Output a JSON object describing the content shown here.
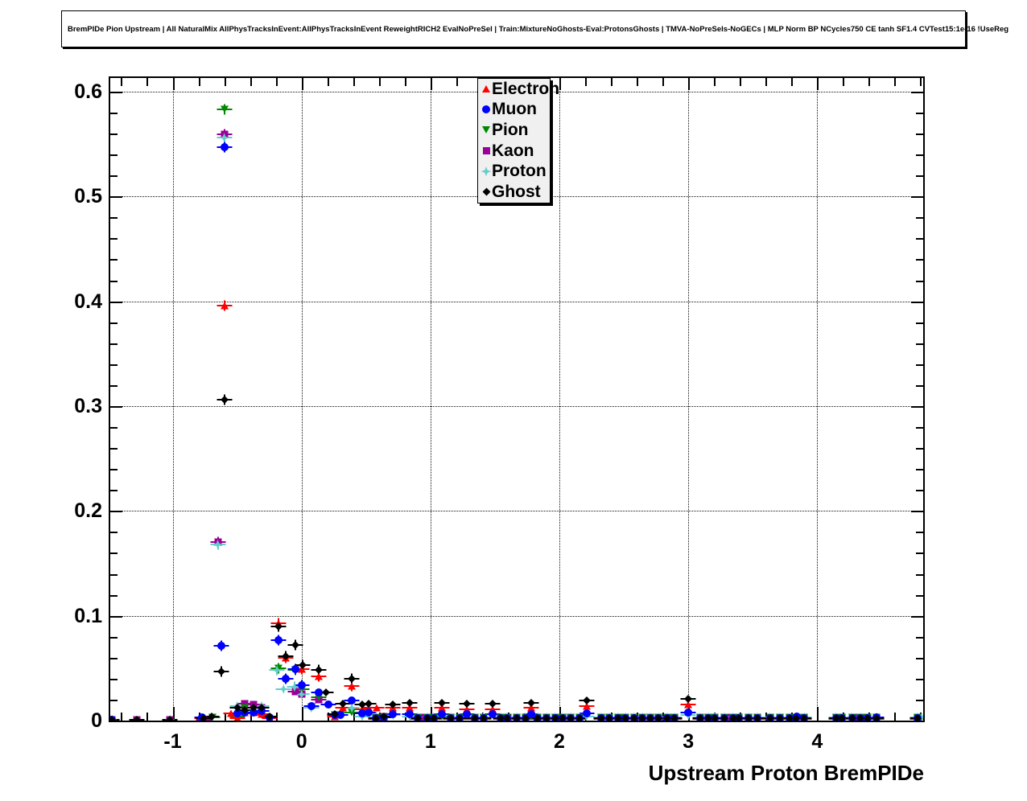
{
  "header": {
    "title": "BremPIDe Pion Upstream | All NaturalMix AllPhysTracksInEvent:AllPhysTracksInEvent ReweightRICH2 EvalNoPreSel | Train:MixtureNoGhosts-Eval:ProtonsGhosts | TMVA-NoPreSels-NoGECs | MLP Norm BP NCycles750 CE tanh SF1.4 CVTest15:1e-16 !UseReg"
  },
  "chart_data": {
    "type": "scatter",
    "title": "BremPIDe Pion Upstream",
    "xlabel": "Upstream Proton BremPIDe",
    "ylabel": "",
    "xlim": [
      -1.484,
      4.822
    ],
    "ylim": [
      0,
      0.613
    ],
    "grid": "dotted",
    "legend_position": "top-center",
    "x_major_ticks": {
      "values": [
        -1,
        0,
        1,
        2,
        3,
        4
      ],
      "labels": [
        "-1",
        "0",
        "1",
        "2",
        "3",
        "4"
      ]
    },
    "y_major_ticks": {
      "values": [
        0,
        0.1,
        0.2,
        0.3,
        0.4,
        0.5,
        0.6
      ],
      "labels": [
        "0",
        "0.1",
        "0.2",
        "0.3",
        "0.4",
        "0.5",
        "0.6"
      ]
    },
    "x_minor_step": 0.2,
    "y_minor_step": 0.02,
    "series": [
      {
        "name": "Kaon",
        "color": "#990099",
        "marker": "square",
        "baseline_y": 0.0028,
        "points": [
          [
            -1.47,
            0.001
          ],
          [
            -1.28,
            0.001
          ],
          [
            -1.02,
            0.001
          ],
          [
            -0.76,
            0.001
          ],
          [
            -0.65,
            0.17
          ],
          [
            -0.6,
            0.559
          ],
          [
            -0.44,
            0.016
          ],
          [
            -0.37,
            0.015
          ],
          [
            -0.31,
            0.012
          ],
          [
            -0.05,
            0.028
          ],
          [
            0.0,
            0.025
          ],
          [
            0.135,
            0.02
          ],
          [
            0.64,
            0.004
          ],
          [
            0.95,
            0.003
          ],
          [
            1.6,
            0.003
          ],
          [
            2.5,
            0.003
          ],
          [
            3.3,
            0.003
          ],
          [
            4.33,
            0.003
          ]
        ]
      },
      {
        "name": "Pion",
        "color": "#008800",
        "marker": "triangle-down",
        "baseline_y": 0.0032,
        "points": [
          [
            -0.69,
            0.003
          ],
          [
            -0.6,
            0.583
          ],
          [
            -0.5,
            0.004
          ],
          [
            -0.44,
            0.012
          ],
          [
            -0.37,
            0.007
          ],
          [
            -0.31,
            0.005
          ],
          [
            -0.18,
            0.05
          ],
          [
            -0.05,
            0.048
          ],
          [
            0.0,
            0.03
          ],
          [
            0.075,
            0.013
          ],
          [
            0.135,
            0.022
          ],
          [
            0.26,
            0.005
          ],
          [
            0.3,
            0.005
          ],
          [
            0.39,
            0.008
          ],
          [
            0.64,
            0.003
          ],
          [
            0.84,
            0.004
          ],
          [
            1.09,
            0.004
          ],
          [
            1.78,
            0.004
          ],
          [
            3.0,
            0.005
          ]
        ]
      },
      {
        "name": "Proton",
        "color": "#66cccc",
        "marker": "star",
        "baseline_y": 0.0034,
        "points": [
          [
            -1.47,
            0.001
          ],
          [
            -1.02,
            0.001
          ],
          [
            -0.65,
            0.168
          ],
          [
            -0.6,
            0.556
          ],
          [
            -0.5,
            0.014
          ],
          [
            -0.31,
            0.014
          ],
          [
            -0.19,
            0.048
          ],
          [
            -0.14,
            0.03
          ],
          [
            -0.055,
            0.032
          ],
          [
            0.0,
            0.025
          ],
          [
            0.075,
            0.012
          ],
          [
            0.39,
            0.012
          ],
          [
            0.47,
            0.004
          ],
          [
            0.71,
            0.005
          ],
          [
            0.84,
            0.004
          ],
          [
            2.21,
            0.004
          ],
          [
            3.0,
            0.005
          ],
          [
            4.81,
            0.003
          ]
        ]
      },
      {
        "name": "Electron",
        "color": "#ff0000",
        "marker": "triangle-up",
        "baseline_y": 0.0012,
        "points": [
          [
            -1.47,
            0.001
          ],
          [
            -0.77,
            0.002
          ],
          [
            -0.6,
            0.396
          ],
          [
            -0.55,
            0.007
          ],
          [
            -0.5,
            0.002
          ],
          [
            -0.44,
            0.008
          ],
          [
            -0.37,
            0.008
          ],
          [
            -0.31,
            0.006
          ],
          [
            -0.25,
            0.002
          ],
          [
            -0.18,
            0.093
          ],
          [
            -0.12,
            0.06
          ],
          [
            0.0,
            0.049
          ],
          [
            0.135,
            0.042
          ],
          [
            0.26,
            0.004
          ],
          [
            0.32,
            0.012
          ],
          [
            0.39,
            0.033
          ],
          [
            0.47,
            0.011
          ],
          [
            0.52,
            0.012
          ],
          [
            0.58,
            0.012
          ],
          [
            0.64,
            0.003
          ],
          [
            0.71,
            0.012
          ],
          [
            0.84,
            0.012
          ],
          [
            0.9,
            0.002
          ],
          [
            1.09,
            0.012
          ],
          [
            1.28,
            0.011
          ],
          [
            1.48,
            0.011
          ],
          [
            1.78,
            0.012
          ],
          [
            2.21,
            0.014
          ],
          [
            3.0,
            0.015
          ]
        ]
      },
      {
        "name": "Muon",
        "color": "#0000ff",
        "marker": "circle",
        "baseline_y": 0.0022,
        "points": [
          [
            -1.47,
            0.001
          ],
          [
            -0.77,
            0.003
          ],
          [
            -0.62,
            0.071
          ],
          [
            -0.6,
            0.547
          ],
          [
            -0.5,
            0.007
          ],
          [
            -0.44,
            0.008
          ],
          [
            -0.37,
            0.008
          ],
          [
            -0.31,
            0.009
          ],
          [
            -0.25,
            0.003
          ],
          [
            -0.18,
            0.077
          ],
          [
            -0.12,
            0.04
          ],
          [
            -0.05,
            0.049
          ],
          [
            0.0,
            0.034
          ],
          [
            0.075,
            0.014
          ],
          [
            0.135,
            0.027
          ],
          [
            0.207,
            0.015
          ],
          [
            0.26,
            0.005
          ],
          [
            0.3,
            0.005
          ],
          [
            0.39,
            0.019
          ],
          [
            0.47,
            0.007
          ],
          [
            0.52,
            0.008
          ],
          [
            0.64,
            0.003
          ],
          [
            0.71,
            0.006
          ],
          [
            0.84,
            0.006
          ],
          [
            1.09,
            0.006
          ],
          [
            1.28,
            0.006
          ],
          [
            1.48,
            0.006
          ],
          [
            1.78,
            0.006
          ],
          [
            2.21,
            0.007
          ],
          [
            3.0,
            0.008
          ],
          [
            3.84,
            0.004
          ],
          [
            4.46,
            0.003
          ]
        ]
      },
      {
        "name": "Ghost",
        "color": "#000000",
        "marker": "diamond",
        "baseline_y": 0.002,
        "points": [
          [
            -1.47,
            0.001
          ],
          [
            -1.28,
            0.001
          ],
          [
            -1.02,
            0.001
          ],
          [
            -0.76,
            0.002
          ],
          [
            -0.7,
            0.004
          ],
          [
            -0.62,
            0.047
          ],
          [
            -0.6,
            0.306
          ],
          [
            -0.5,
            0.012
          ],
          [
            -0.44,
            0.01
          ],
          [
            -0.37,
            0.012
          ],
          [
            -0.31,
            0.012
          ],
          [
            -0.25,
            0.004
          ],
          [
            -0.18,
            0.09
          ],
          [
            -0.12,
            0.061
          ],
          [
            -0.05,
            0.072
          ],
          [
            0.01,
            0.053
          ],
          [
            0.135,
            0.048
          ],
          [
            0.19,
            0.027
          ],
          [
            0.26,
            0.006
          ],
          [
            0.32,
            0.016
          ],
          [
            0.39,
            0.04
          ],
          [
            0.47,
            0.015
          ],
          [
            0.52,
            0.016
          ],
          [
            0.64,
            0.004
          ],
          [
            0.71,
            0.015
          ],
          [
            0.84,
            0.017
          ],
          [
            1.09,
            0.017
          ],
          [
            1.28,
            0.016
          ],
          [
            1.48,
            0.016
          ],
          [
            1.78,
            0.017
          ],
          [
            2.21,
            0.019
          ],
          [
            3.0,
            0.021
          ]
        ]
      }
    ],
    "baseline": {
      "xs": [
        0.58,
        0.9,
        0.97,
        1.03,
        1.16,
        1.22,
        1.35,
        1.41,
        1.54,
        1.6,
        1.67,
        1.73,
        1.84,
        1.9,
        1.96,
        2.03,
        2.09,
        2.15,
        2.33,
        2.39,
        2.45,
        2.52,
        2.58,
        2.64,
        2.71,
        2.77,
        2.83,
        2.9,
        3.09,
        3.15,
        3.21,
        3.28,
        3.34,
        3.4,
        3.47,
        3.53,
        3.64,
        3.71,
        3.78,
        3.84,
        3.9,
        4.14,
        4.2,
        4.27,
        4.33,
        4.4,
        4.46,
        4.77
      ]
    }
  },
  "legend": {
    "entries": [
      {
        "label": "Electron",
        "color": "#ff0000",
        "marker": "triangle-up"
      },
      {
        "label": "Muon",
        "color": "#0000ff",
        "marker": "circle"
      },
      {
        "label": "Pion",
        "color": "#008800",
        "marker": "triangle-down"
      },
      {
        "label": "Kaon",
        "color": "#990099",
        "marker": "square"
      },
      {
        "label": "Proton",
        "color": "#66cccc",
        "marker": "star"
      },
      {
        "label": "Ghost",
        "color": "#000000",
        "marker": "diamond"
      }
    ]
  }
}
